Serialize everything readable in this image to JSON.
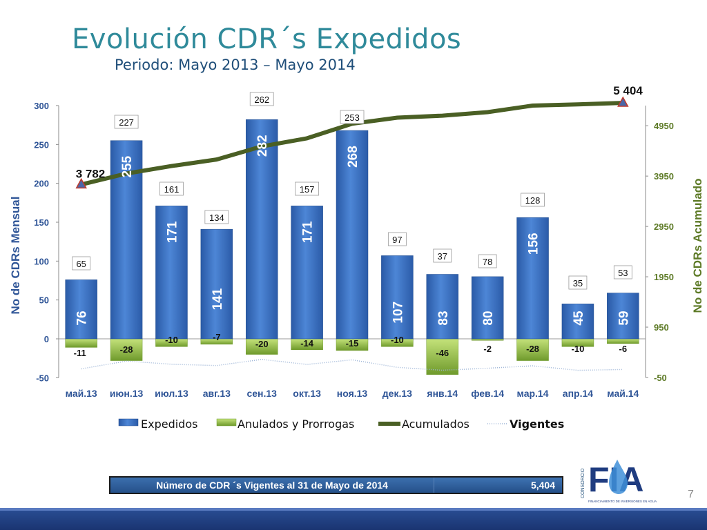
{
  "slide": {
    "title": "Evolución CDR´s Expedidos",
    "subtitle": "Periodo: Mayo 2013 – Mayo 2014",
    "page_number": "7"
  },
  "summary": {
    "label": "Número de CDR ´s Vigentes al 31 de Mayo de 2014",
    "value": "5,404"
  },
  "logo": {
    "vertical_text": "CONSORCIO",
    "letters": "FIA",
    "tagline": "FINANCIAMIENTO DE INVERSIONES EN AGUA"
  },
  "colors": {
    "title": "#2f8a9a",
    "expedidos": "#3f74c4",
    "anulados": "#8cbd3f",
    "acumulados": "#4a5f24",
    "vigentes": "#9cb4d6",
    "right_axis": "#5d7a26",
    "footer": "#1f3c80"
  },
  "chart_data": {
    "type": "bar",
    "categories": [
      "май.13",
      "июн.13",
      "июл.13",
      "авг.13",
      "сен.13",
      "окт.13",
      "ноя.13",
      "дек.13",
      "янв.14",
      "фев.14",
      "мар.14",
      "апр.14",
      "май.14"
    ],
    "ylabel": "No de CDRs Mensual",
    "y2label": "No de CDRs Acumulado",
    "ylim": [
      -50,
      300
    ],
    "yticks": [
      "300",
      "250",
      "200",
      "150",
      "100",
      "50",
      "0",
      "-50"
    ],
    "y2lim": [
      -50,
      5350
    ],
    "y2ticks": [
      "4950",
      "3950",
      "2950",
      "1950",
      "950",
      "-50"
    ],
    "series": [
      {
        "name": "Expedidos",
        "type": "bar",
        "values": [
          76,
          255,
          171,
          141,
          282,
          171,
          268,
          107,
          83,
          80,
          156,
          45,
          59
        ]
      },
      {
        "name": "Anulados y Prorrogas",
        "type": "bar",
        "values": [
          -11,
          -28,
          -10,
          -7,
          -20,
          -14,
          -15,
          -10,
          -46,
          -2,
          -28,
          -10,
          -6
        ]
      },
      {
        "name": "Acumulados",
        "type": "line",
        "axis": "right",
        "values": [
          3782,
          4000,
          4150,
          4280,
          4540,
          4700,
          4990,
          5110,
          5150,
          5220,
          5350,
          5375,
          5404
        ]
      },
      {
        "name": "Vigentes",
        "type": "line",
        "values": [
          65,
          227,
          161,
          134,
          262,
          157,
          253,
          97,
          37,
          78,
          128,
          35,
          53
        ]
      }
    ],
    "data_labels": {
      "acumulados_start": "3 782",
      "acumulados_end": "5 404"
    },
    "legend": {
      "position": "bottom",
      "entries": [
        "Expedidos",
        "Anulados y Prorrogas",
        "Acumulados",
        "Vigentes"
      ]
    },
    "grid": false
  }
}
